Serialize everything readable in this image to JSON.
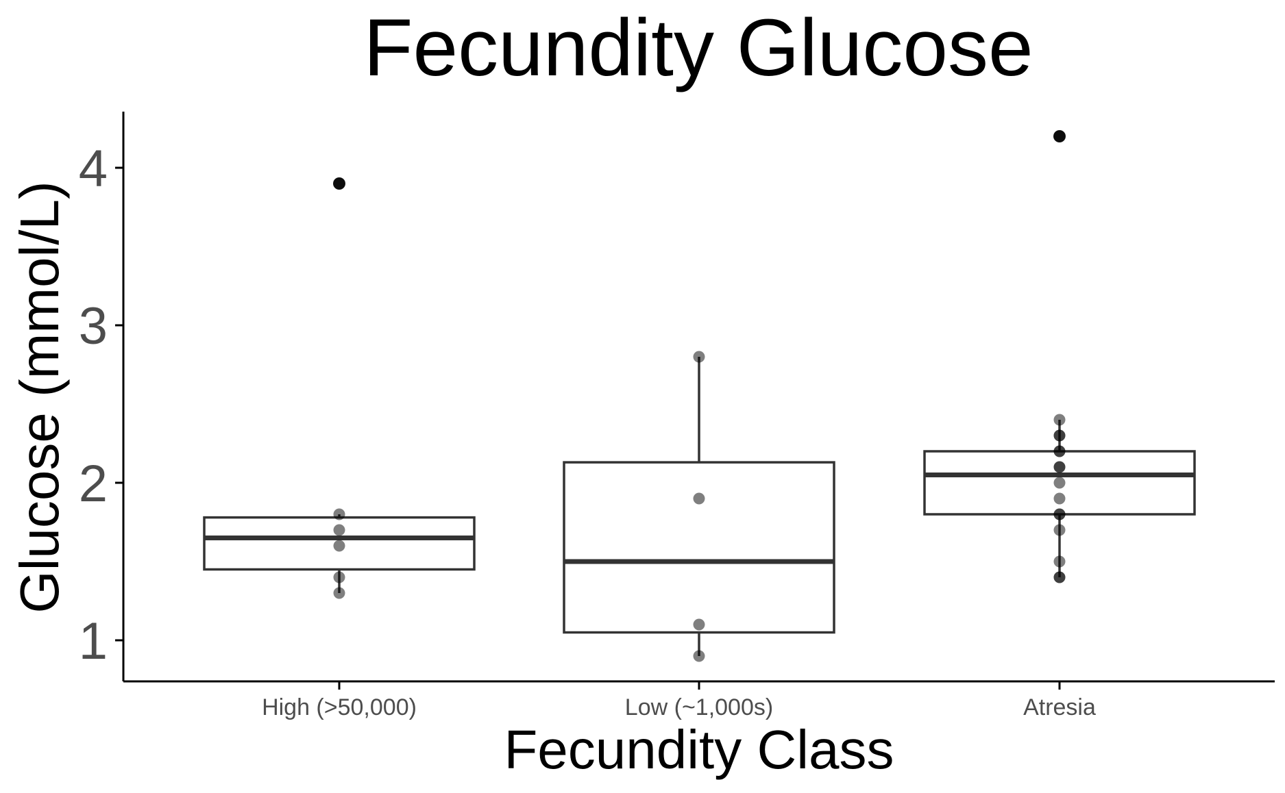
{
  "chart_data": {
    "type": "box",
    "title": "Fecundity Glucose",
    "xlabel": "Fecundity Class",
    "ylabel": "Glucose (mmol/L)",
    "categories": [
      "High (>50,000)",
      "Low (~1,000s)",
      "Atresia"
    ],
    "yticks": [
      "1",
      "2",
      "3",
      "4"
    ],
    "ylim": [
      0.74,
      4.37
    ],
    "grid": false,
    "legend": "none",
    "boxes": [
      {
        "category": "High (>50,000)",
        "lower_whisker": 1.3,
        "q1": 1.45,
        "median": 1.65,
        "q3": 1.78,
        "upper_whisker": 1.8,
        "outliers": [
          3.9
        ]
      },
      {
        "category": "Low (~1,000s)",
        "lower_whisker": 0.9,
        "q1": 1.05,
        "median": 1.5,
        "q3": 2.13,
        "upper_whisker": 2.8,
        "outliers": []
      },
      {
        "category": "Atresia",
        "lower_whisker": 1.4,
        "q1": 1.8,
        "median": 2.05,
        "q3": 2.2,
        "upper_whisker": 2.4,
        "outliers": [
          4.2
        ]
      }
    ],
    "points": [
      {
        "category": "High (>50,000)",
        "values": [
          1.3,
          1.4,
          1.6,
          1.7,
          1.8,
          3.9
        ]
      },
      {
        "category": "Low (~1,000s)",
        "values": [
          0.9,
          1.1,
          1.9,
          2.8
        ]
      },
      {
        "category": "Atresia",
        "values": [
          1.4,
          1.4,
          1.5,
          1.7,
          1.8,
          1.8,
          1.9,
          2.0,
          2.1,
          2.1,
          2.2,
          2.2,
          2.3,
          2.3,
          2.4,
          4.2
        ]
      }
    ],
    "colors": {
      "box_stroke": "#333333",
      "box_fill": "#ffffff",
      "point": "#000000",
      "axis": "#000000"
    }
  }
}
